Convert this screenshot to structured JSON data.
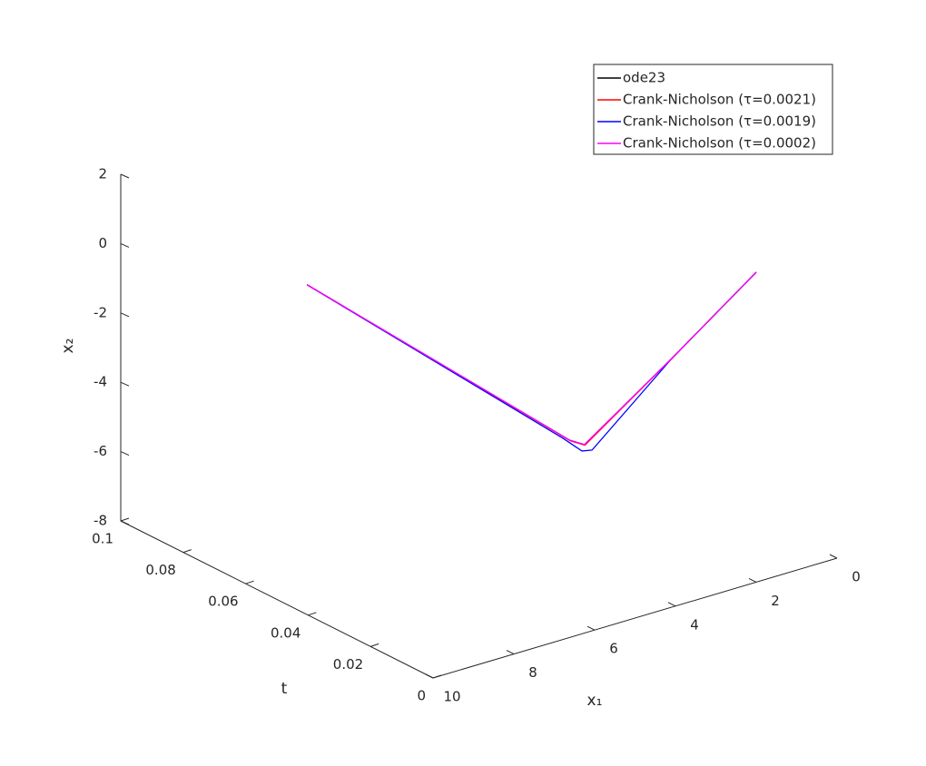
{
  "chart_data": {
    "type": "line3d",
    "xlabel": "x₁",
    "ylabel": "t",
    "zlabel": "x₂",
    "xlim": [
      0,
      10
    ],
    "xticks": [
      0,
      2,
      4,
      6,
      8,
      10
    ],
    "ylim": [
      0,
      0.1
    ],
    "yticks": [
      0,
      0.02,
      0.04,
      0.06,
      0.08,
      0.1
    ],
    "zlim": [
      -8,
      2
    ],
    "zticks": [
      -8,
      -6,
      -4,
      -2,
      0,
      2
    ],
    "legend": "upper right",
    "series": [
      {
        "name": "ode23",
        "color": "#000000",
        "t": [
          0,
          0.01,
          0.018,
          0.022,
          0.1
        ],
        "x1": [
          2,
          3.32,
          4.86,
          4.91,
          5.39
        ],
        "x2": [
          0.94,
          -1.55,
          -3.86,
          -3.9,
          -2.78
        ]
      },
      {
        "name": "Crank-Nicholson (τ=0.0021)",
        "color": "#ff0000",
        "t": [
          0,
          0.01,
          0.018,
          0.022,
          0.1
        ],
        "x1": [
          2,
          3.32,
          4.85,
          4.9,
          5.39
        ],
        "x2": [
          0.94,
          -1.55,
          -3.88,
          -3.92,
          -2.78
        ]
      },
      {
        "name": "Crank-Nicholson (τ=0.0019)",
        "color": "#0000ff",
        "t": [
          0,
          0.01,
          0.017,
          0.021,
          0.025,
          0.1
        ],
        "x1": [
          2,
          3.32,
          4.75,
          4.69,
          4.85,
          5.39
        ],
        "x2": [
          0.94,
          -1.55,
          -4.01,
          -4.24,
          -4,
          -2.78
        ]
      },
      {
        "name": "Crank-Nicholson (τ=0.0002)",
        "color": "#ff00ff",
        "t": [
          0,
          0.01,
          0.018,
          0.022,
          0.1
        ],
        "x1": [
          2,
          3.32,
          4.86,
          4.91,
          5.39
        ],
        "x2": [
          0.94,
          -1.55,
          -3.86,
          -3.9,
          -2.78
        ]
      }
    ]
  }
}
